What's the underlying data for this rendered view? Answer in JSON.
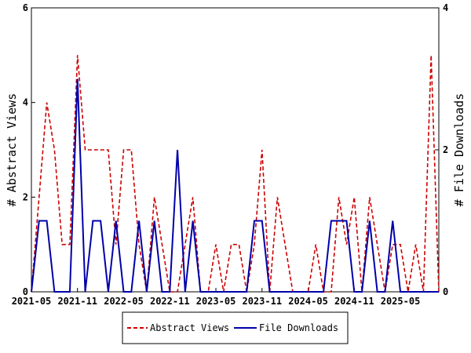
{
  "chart_data": {
    "type": "line",
    "title": "",
    "xlabel": "",
    "ylabel_left": "# Abstract Views",
    "ylabel_right": "# File Downloads",
    "x_ticks": [
      "2021-05",
      "2021-11",
      "2022-05",
      "2022-11",
      "2023-05",
      "2023-11",
      "2024-05",
      "2024-11",
      "2025-05"
    ],
    "x_range": [
      "2021-05",
      "2025-10"
    ],
    "ylim_left": [
      0,
      6
    ],
    "ylim_right": [
      0,
      4
    ],
    "yticks_left": [
      "0",
      "2",
      "4",
      "6"
    ],
    "yticks_right": [
      "0",
      "2",
      "4"
    ],
    "grid": false,
    "legend_position": "bottom",
    "months": [
      "2021-05",
      "2021-06",
      "2021-07",
      "2021-08",
      "2021-09",
      "2021-10",
      "2021-11",
      "2021-12",
      "2022-01",
      "2022-02",
      "2022-03",
      "2022-04",
      "2022-05",
      "2022-06",
      "2022-07",
      "2022-08",
      "2022-09",
      "2022-10",
      "2022-11",
      "2022-12",
      "2023-01",
      "2023-02",
      "2023-03",
      "2023-04",
      "2023-05",
      "2023-06",
      "2023-07",
      "2023-08",
      "2023-09",
      "2023-10",
      "2023-11",
      "2023-12",
      "2024-01",
      "2024-02",
      "2024-03",
      "2024-04",
      "2024-05",
      "2024-06",
      "2024-07",
      "2024-08",
      "2024-09",
      "2024-10",
      "2024-11",
      "2024-12",
      "2025-01",
      "2025-02",
      "2025-03",
      "2025-04",
      "2025-05",
      "2025-06",
      "2025-07",
      "2025-08",
      "2025-09",
      "2025-10"
    ],
    "series": [
      {
        "name": "Abstract Views",
        "axis": "left",
        "color": "#cc0000",
        "dash": "dashed",
        "values": [
          0,
          2,
          4,
          3,
          1,
          1,
          5,
          3,
          3,
          3,
          3,
          1,
          3,
          3,
          1,
          0,
          2,
          1,
          0,
          0,
          1,
          2,
          0,
          0,
          1,
          0,
          1,
          1,
          0,
          1,
          3,
          0,
          2,
          1,
          0,
          0,
          0,
          1,
          0,
          0,
          2,
          1,
          2,
          0,
          2,
          1,
          0,
          1,
          1,
          0,
          1,
          0,
          5,
          0
        ]
      },
      {
        "name": "File Downloads",
        "axis": "right",
        "color": "#0000aa",
        "dash": "solid",
        "values": [
          0,
          1,
          1,
          0,
          0,
          0,
          3,
          0,
          1,
          1,
          0,
          1,
          0,
          0,
          1,
          0,
          1,
          0,
          0,
          2,
          0,
          1,
          0,
          0,
          0,
          0,
          0,
          0,
          0,
          1,
          1,
          0,
          0,
          0,
          0,
          0,
          0,
          0,
          0,
          1,
          1,
          1,
          0,
          0,
          1,
          0,
          0,
          1,
          0,
          0,
          0,
          0,
          0,
          0
        ]
      }
    ]
  }
}
